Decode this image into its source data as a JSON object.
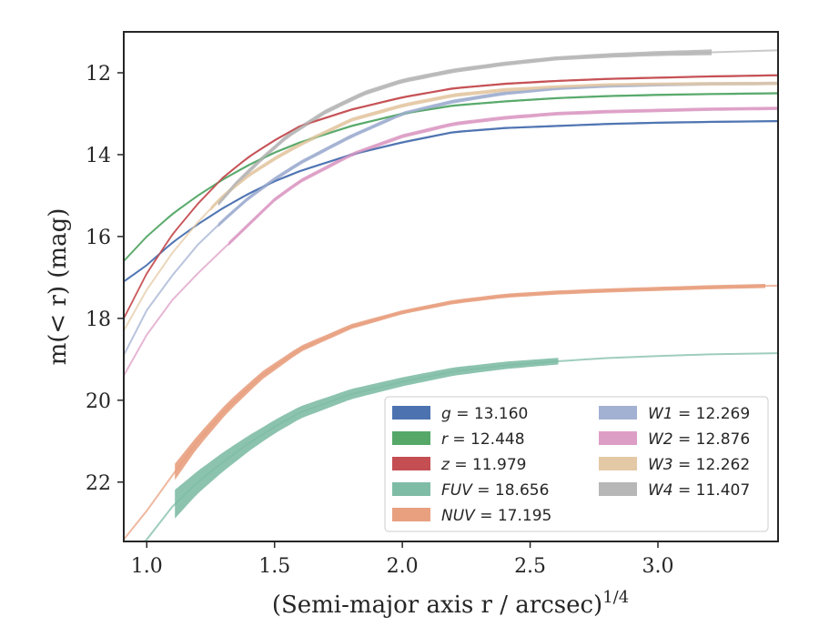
{
  "chart_data": {
    "type": "line",
    "xlabel": "(Semi-major axis r / arcsec)",
    "xlabel_sup": "1/4",
    "ylabel": "m(< r) (mag)",
    "xlim": [
      0.91,
      3.47
    ],
    "ylim": [
      23.45,
      11.0
    ],
    "y_inverted": true,
    "x_ticks": [
      1.0,
      1.5,
      2.0,
      2.5,
      3.0
    ],
    "x_tick_labels": [
      "1.0",
      "1.5",
      "2.0",
      "2.5",
      "3.0"
    ],
    "y_ticks": [
      12,
      14,
      16,
      18,
      20,
      22
    ],
    "y_tick_labels": [
      "12",
      "14",
      "16",
      "18",
      "20",
      "22"
    ],
    "grid": false,
    "legend_placement": "lower-right",
    "legend_columns": 2,
    "series": [
      {
        "name": "g = 13.160",
        "label_var": "g",
        "label_val": "= 13.160",
        "color": "#4c72b0",
        "x": [
          0.91,
          1.0,
          1.1,
          1.2,
          1.3,
          1.4,
          1.5,
          1.6,
          1.7,
          1.8,
          2.0,
          2.2,
          2.4,
          2.6,
          2.8,
          3.0,
          3.2,
          3.47
        ],
        "y": [
          17.1,
          16.7,
          16.15,
          15.7,
          15.3,
          14.95,
          14.65,
          14.4,
          14.2,
          14.0,
          13.7,
          13.45,
          13.35,
          13.3,
          13.25,
          13.22,
          13.2,
          13.18
        ],
        "band_x": [
          0.91,
          3.47
        ],
        "band_width": [
          0.05,
          0.05
        ]
      },
      {
        "name": "r = 12.448",
        "label_var": "r",
        "label_val": "= 12.448",
        "color": "#55a868",
        "x": [
          0.91,
          1.0,
          1.1,
          1.2,
          1.3,
          1.4,
          1.5,
          1.6,
          1.8,
          2.0,
          2.2,
          2.4,
          2.6,
          2.8,
          3.0,
          3.2,
          3.47
        ],
        "y": [
          16.6,
          16.0,
          15.45,
          15.0,
          14.6,
          14.25,
          13.95,
          13.7,
          13.3,
          13.0,
          12.8,
          12.7,
          12.62,
          12.57,
          12.54,
          12.52,
          12.5
        ],
        "band_x": [
          0.91,
          3.47
        ],
        "band_width": [
          0.05,
          0.05
        ]
      },
      {
        "name": "z = 11.979",
        "label_var": "z",
        "label_val": "= 11.979",
        "color": "#c44e52",
        "x": [
          0.91,
          1.0,
          1.1,
          1.2,
          1.3,
          1.4,
          1.5,
          1.6,
          1.8,
          2.0,
          2.2,
          2.4,
          2.6,
          2.8,
          3.0,
          3.2,
          3.47
        ],
        "y": [
          18.0,
          16.9,
          15.95,
          15.2,
          14.55,
          14.05,
          13.65,
          13.3,
          12.9,
          12.6,
          12.38,
          12.27,
          12.2,
          12.15,
          12.12,
          12.09,
          12.06
        ],
        "band_x": [
          0.91,
          3.47
        ],
        "band_width": [
          0.05,
          0.05
        ]
      },
      {
        "name": "FUV = 18.656",
        "label_var": "FUV",
        "label_val": "= 18.656",
        "color": "#7fbca6",
        "x": [
          0.91,
          1.0,
          1.1,
          1.2,
          1.3,
          1.4,
          1.5,
          1.6,
          1.8,
          2.0,
          2.2,
          2.4,
          2.6,
          2.8,
          3.0,
          3.2,
          3.47
        ],
        "y": [
          24.0,
          23.4,
          22.6,
          22.0,
          21.5,
          21.05,
          20.65,
          20.3,
          19.85,
          19.55,
          19.3,
          19.15,
          19.05,
          18.97,
          18.92,
          18.88,
          18.85
        ],
        "band_x": [
          1.11,
          1.2,
          1.32,
          1.45,
          1.6,
          1.8,
          2.0,
          2.2,
          2.4,
          2.61
        ],
        "band_width": [
          0.7,
          0.55,
          0.45,
          0.35,
          0.3,
          0.25,
          0.22,
          0.2,
          0.18,
          0.16
        ]
      },
      {
        "name": "NUV = 17.195",
        "label_var": "NUV",
        "label_val": "= 17.195",
        "color": "#e8a07f",
        "x": [
          0.91,
          1.0,
          1.11,
          1.2,
          1.32,
          1.45,
          1.6,
          1.8,
          2.0,
          2.2,
          2.4,
          2.6,
          2.8,
          3.0,
          3.2,
          3.47
        ],
        "y": [
          23.4,
          22.7,
          21.75,
          21.0,
          20.15,
          19.4,
          18.75,
          18.2,
          17.85,
          17.6,
          17.45,
          17.37,
          17.32,
          17.28,
          17.24,
          17.2
        ],
        "band_x": [
          1.11,
          1.2,
          1.32,
          1.45,
          1.6,
          1.8,
          2.0,
          2.4,
          2.8,
          3.2,
          3.42
        ],
        "band_width": [
          0.4,
          0.3,
          0.25,
          0.2,
          0.15,
          0.12,
          0.1,
          0.1,
          0.1,
          0.1,
          0.1
        ]
      },
      {
        "name": "W1 = 12.269",
        "label_var": "W1",
        "label_val": "= 12.269",
        "color": "#a2b0d2",
        "x": [
          0.91,
          1.0,
          1.1,
          1.2,
          1.3,
          1.4,
          1.5,
          1.6,
          1.8,
          2.0,
          2.2,
          2.4,
          2.6,
          2.8,
          3.0,
          3.2,
          3.47
        ],
        "y": [
          18.9,
          17.8,
          16.95,
          16.2,
          15.6,
          15.05,
          14.6,
          14.2,
          13.55,
          13.0,
          12.7,
          12.5,
          12.38,
          12.32,
          12.29,
          12.27,
          12.26
        ],
        "band_x": [
          1.28,
          3.47
        ],
        "band_width": [
          0.1,
          0.08
        ]
      },
      {
        "name": "W2 = 12.876",
        "label_var": "W2",
        "label_val": "= 12.876",
        "color": "#dd9ec6",
        "x": [
          0.91,
          1.0,
          1.1,
          1.2,
          1.3,
          1.4,
          1.5,
          1.6,
          1.8,
          2.0,
          2.2,
          2.4,
          2.6,
          2.8,
          3.0,
          3.2,
          3.47
        ],
        "y": [
          19.4,
          18.4,
          17.55,
          16.9,
          16.3,
          15.7,
          15.1,
          14.65,
          14.0,
          13.55,
          13.25,
          13.1,
          13.0,
          12.95,
          12.92,
          12.89,
          12.87
        ],
        "band_x": [
          1.32,
          3.47
        ],
        "band_width": [
          0.1,
          0.08
        ]
      },
      {
        "name": "W3 = 12.262",
        "label_var": "W3",
        "label_val": "= 12.262",
        "color": "#e4c9a6",
        "x": [
          0.91,
          1.0,
          1.1,
          1.2,
          1.3,
          1.4,
          1.5,
          1.6,
          1.8,
          2.0,
          2.2,
          2.4,
          2.6,
          2.8,
          3.0,
          3.2,
          3.47
        ],
        "y": [
          18.3,
          17.3,
          16.4,
          15.65,
          15.0,
          14.5,
          14.1,
          13.75,
          13.15,
          12.8,
          12.55,
          12.42,
          12.35,
          12.3,
          12.28,
          12.27,
          12.26
        ],
        "band_x": [
          1.25,
          3.47
        ],
        "band_width": [
          0.1,
          0.08
        ]
      },
      {
        "name": "W4 = 11.407",
        "label_var": "W4",
        "label_val": "= 11.407",
        "color": "#b7b7b7",
        "x": [
          1.28,
          1.35,
          1.45,
          1.55,
          1.7,
          1.85,
          2.0,
          2.2,
          2.4,
          2.6,
          2.8,
          3.0,
          3.21,
          3.47
        ],
        "y": [
          15.2,
          14.7,
          14.1,
          13.55,
          12.95,
          12.5,
          12.2,
          11.95,
          11.78,
          11.65,
          11.58,
          11.53,
          11.5,
          11.45
        ],
        "band_x": [
          1.28,
          2.6,
          3.0,
          3.21
        ],
        "band_width": [
          0.12,
          0.1,
          0.12,
          0.14
        ]
      }
    ]
  }
}
